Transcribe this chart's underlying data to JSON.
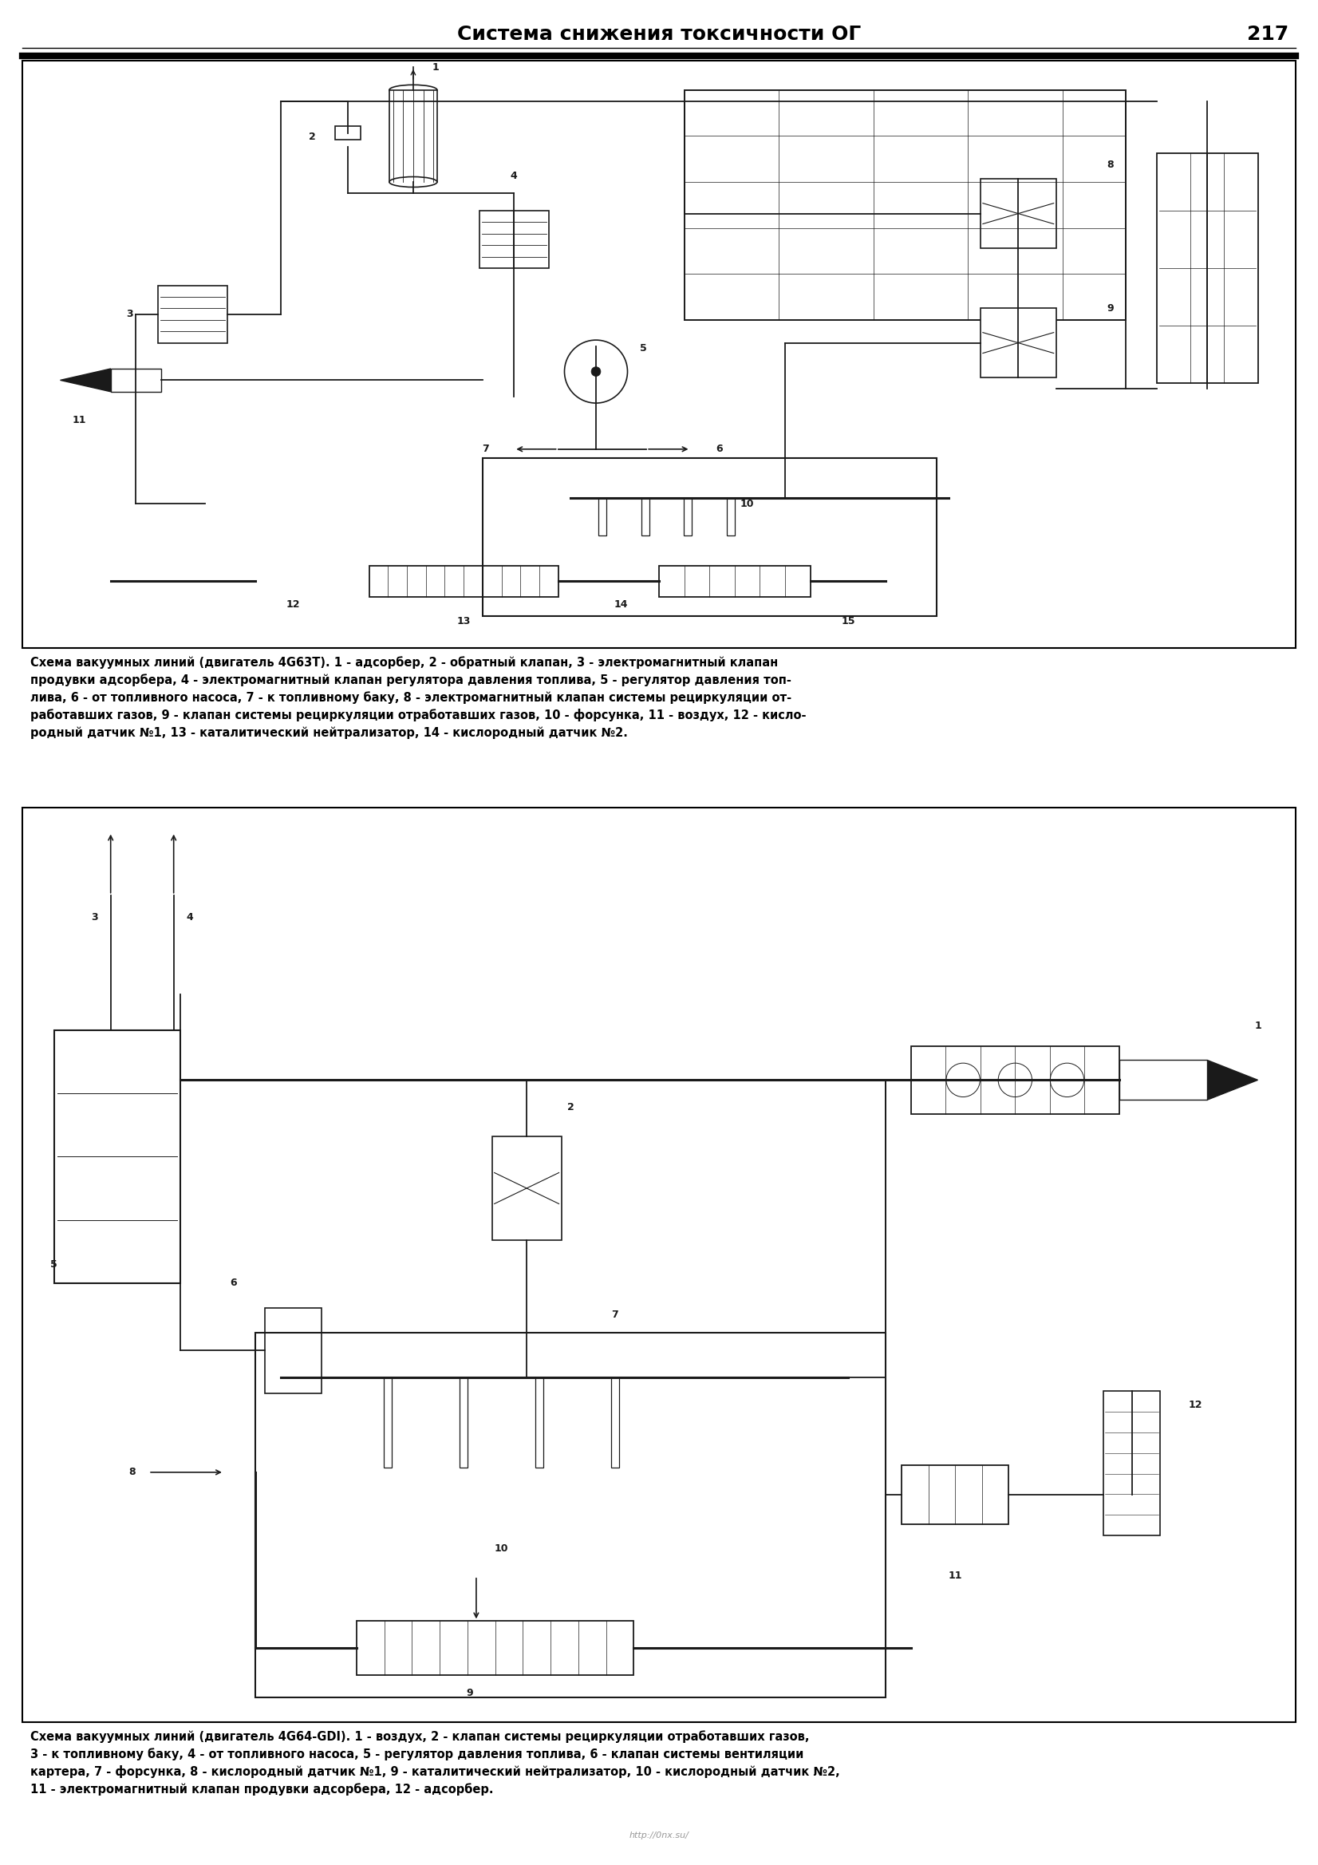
{
  "title": "Система снижения токсичности ОГ",
  "page_number": "217",
  "bg_color": "#ffffff",
  "caption1_line1": "Схема вакуумных линий (двигатель 4G63T). 1 - адсорбер, 2 - обратный клапан, 3 - электромагнитный клапан",
  "caption1_line2": "продувки адсорбера, 4 - электромагнитный клапан регулятора давления топлива, 5 - регулятор давления топ-",
  "caption1_line3": "лива, 6 - от топливного насоса, 7 - к топливному баку, 8 - электромагнитный клапан системы рециркуляции от-",
  "caption1_line4": "работавших газов, 9 - клапан системы рециркуляции отработавших газов, 10 - форсунка, 11 - воздух, 12 - кисло-",
  "caption1_line5": "родный датчик №1, 13 - каталитический нейтрализатор, 14 - кислородный датчик №2.",
  "caption2_line1": "Схема вакуумных линий (двигатель 4G64-GDI). 1 - воздух, 2 - клапан системы рециркуляции отработавших газов,",
  "caption2_line2": "3 - к топливному баку, 4 - от топливного насоса, 5 - регулятор давления топлива, 6 - клапан системы вентиляции",
  "caption2_line3": "картера, 7 - форсунка, 8 - кислородный датчик №1, 9 - каталитический нейтрализатор, 10 - кислородный датчик №2,",
  "caption2_line4": "11 - электромагнитный клапан продувки адсорбера, 12 - адсорбер.",
  "watermark": "http://0nx.su/",
  "title_fontsize": 18,
  "caption_fontsize": 10.5
}
